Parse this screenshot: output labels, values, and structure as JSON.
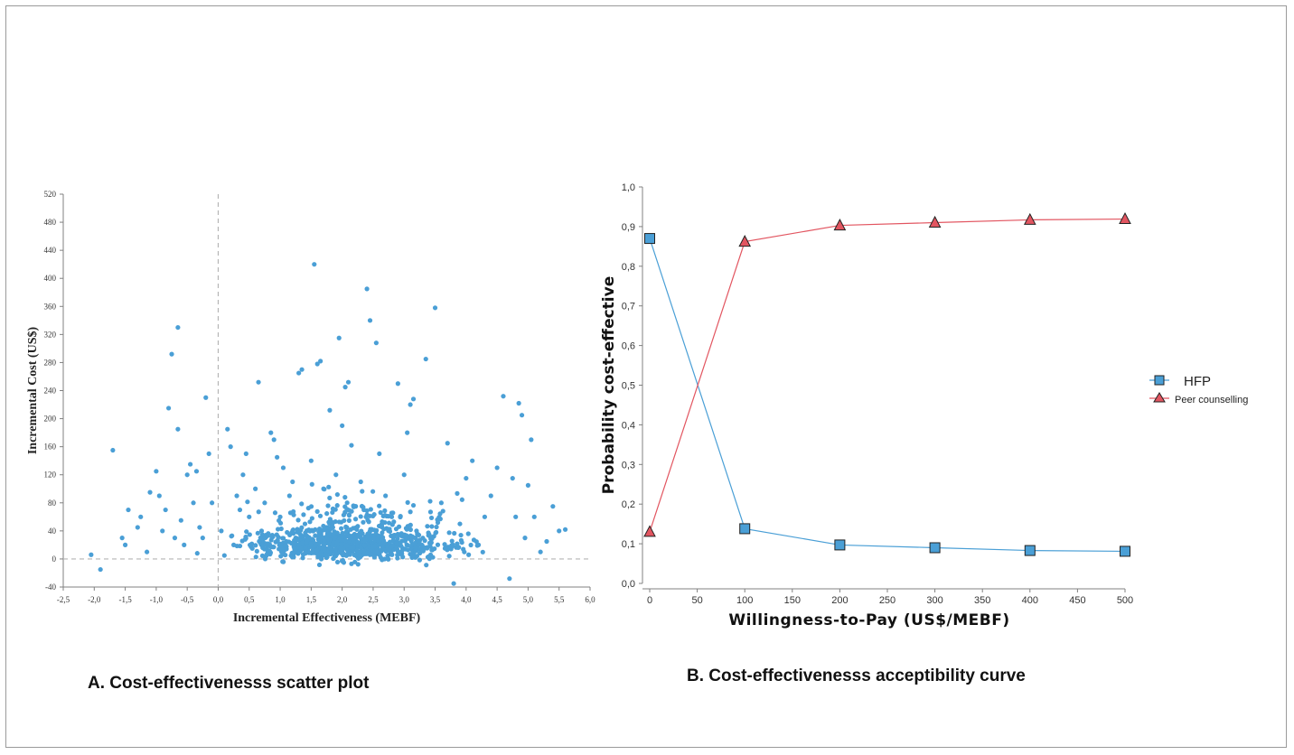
{
  "colors": {
    "scatter_point": "#4a9fd6",
    "hfp": "#4a9fd6",
    "peer": "#e25560",
    "axis": "#808080",
    "ref_line": "#b5b5b5"
  },
  "captions": {
    "a": "A. Cost-effectivenesss  scatter plot",
    "b": "B. Cost-effectivenesss  acceptibility curve"
  },
  "chart_data": [
    {
      "type": "scatter",
      "xlabel": "Incremental Effectiveness (MEBF)",
      "ylabel": "Incremental Cost (US$)",
      "xlim": [
        -2.5,
        6.0
      ],
      "ylim": [
        -40,
        520
      ],
      "x_ticks": [
        "-2,5",
        "-2,0",
        "-1,5",
        "-1,0",
        "-0,5",
        "0,0",
        "0,5",
        "1,0",
        "1,5",
        "2,0",
        "2,5",
        "3,0",
        "3,5",
        "4,0",
        "4,5",
        "5,0",
        "5,5",
        "6,0"
      ],
      "y_ticks": [
        "-40",
        "0",
        "40",
        "80",
        "120",
        "160",
        "200",
        "240",
        "280",
        "320",
        "360",
        "400",
        "440",
        "480",
        "520"
      ],
      "reference_lines": {
        "x": 0,
        "y": 0
      },
      "points": [
        [
          -2.05,
          6
        ],
        [
          -1.9,
          -15
        ],
        [
          -1.7,
          155
        ],
        [
          -1.55,
          30
        ],
        [
          -1.5,
          20
        ],
        [
          -1.45,
          70
        ],
        [
          -1.3,
          45
        ],
        [
          -1.25,
          60
        ],
        [
          -1.15,
          10
        ],
        [
          -1.1,
          95
        ],
        [
          -1.0,
          125
        ],
        [
          -0.95,
          90
        ],
        [
          -0.9,
          40
        ],
        [
          -0.85,
          70
        ],
        [
          -0.8,
          215
        ],
        [
          -0.75,
          292
        ],
        [
          -0.7,
          30
        ],
        [
          -0.65,
          185
        ],
        [
          -0.65,
          330
        ],
        [
          -0.6,
          55
        ],
        [
          -0.55,
          20
        ],
        [
          -0.5,
          120
        ],
        [
          -0.45,
          135
        ],
        [
          -0.4,
          80
        ],
        [
          -0.35,
          125
        ],
        [
          -0.3,
          45
        ],
        [
          -0.25,
          30
        ],
        [
          -0.2,
          230
        ],
        [
          -0.15,
          150
        ],
        [
          -0.1,
          80
        ],
        [
          0.05,
          40
        ],
        [
          0.1,
          5
        ],
        [
          0.15,
          185
        ],
        [
          0.2,
          160
        ],
        [
          0.25,
          20
        ],
        [
          0.3,
          90
        ],
        [
          0.35,
          70
        ],
        [
          0.4,
          120
        ],
        [
          0.45,
          150
        ],
        [
          0.5,
          60
        ],
        [
          0.55,
          15
        ],
        [
          0.6,
          100
        ],
        [
          0.65,
          252
        ],
        [
          0.7,
          40
        ],
        [
          0.75,
          80
        ],
        [
          0.8,
          10
        ],
        [
          0.85,
          180
        ],
        [
          0.9,
          170
        ],
        [
          0.95,
          145
        ],
        [
          1.0,
          60
        ],
        [
          1.05,
          130
        ],
        [
          1.1,
          25
        ],
        [
          1.15,
          90
        ],
        [
          1.2,
          110
        ],
        [
          1.25,
          30
        ],
        [
          1.3,
          265
        ],
        [
          1.35,
          270
        ],
        [
          1.4,
          50
        ],
        [
          1.45,
          15
        ],
        [
          1.5,
          140
        ],
        [
          1.55,
          420
        ],
        [
          1.6,
          278
        ],
        [
          1.65,
          282
        ],
        [
          1.7,
          100
        ],
        [
          1.8,
          212
        ],
        [
          1.85,
          45
        ],
        [
          1.9,
          120
        ],
        [
          1.95,
          315
        ],
        [
          2.0,
          190
        ],
        [
          2.05,
          245
        ],
        [
          2.1,
          252
        ],
        [
          2.15,
          162
        ],
        [
          2.2,
          30
        ],
        [
          2.3,
          110
        ],
        [
          2.35,
          70
        ],
        [
          2.4,
          385
        ],
        [
          2.45,
          340
        ],
        [
          2.5,
          20
        ],
        [
          2.55,
          308
        ],
        [
          2.6,
          150
        ],
        [
          2.7,
          90
        ],
        [
          2.8,
          60
        ],
        [
          2.9,
          250
        ],
        [
          3.0,
          120
        ],
        [
          3.05,
          180
        ],
        [
          3.1,
          220
        ],
        [
          3.15,
          228
        ],
        [
          3.2,
          40
        ],
        [
          3.35,
          285
        ],
        [
          3.5,
          358
        ],
        [
          3.6,
          80
        ],
        [
          3.7,
          165
        ],
        [
          3.8,
          -35
        ],
        [
          3.9,
          50
        ],
        [
          4.0,
          115
        ],
        [
          4.1,
          140
        ],
        [
          4.2,
          20
        ],
        [
          4.3,
          60
        ],
        [
          4.4,
          90
        ],
        [
          4.5,
          130
        ],
        [
          4.6,
          232
        ],
        [
          4.7,
          -28
        ],
        [
          4.75,
          115
        ],
        [
          4.8,
          60
        ],
        [
          4.85,
          222
        ],
        [
          4.9,
          205
        ],
        [
          4.95,
          30
        ],
        [
          5.0,
          105
        ],
        [
          5.05,
          170
        ],
        [
          5.1,
          60
        ],
        [
          5.2,
          10
        ],
        [
          5.3,
          25
        ],
        [
          5.4,
          75
        ],
        [
          5.5,
          40
        ],
        [
          5.6,
          42
        ]
      ]
    },
    {
      "type": "line",
      "xlabel": "Willingness-to-Pay (US$/MEBF)",
      "ylabel": "Probability cost-effective",
      "xlim": [
        0,
        500
      ],
      "ylim": [
        0,
        1.0
      ],
      "x_ticks": [
        "0",
        "50",
        "100",
        "150",
        "200",
        "250",
        "300",
        "350",
        "400",
        "450",
        "500"
      ],
      "y_ticks": [
        "0,0",
        "0,1",
        "0,2",
        "0,3",
        "0,4",
        "0,5",
        "0,6",
        "0,7",
        "0,8",
        "0,9",
        "1,0"
      ],
      "x": [
        0,
        100,
        200,
        300,
        400,
        500
      ],
      "series": [
        {
          "name": "HFP",
          "marker": "square",
          "values": [
            0.87,
            0.138,
            0.097,
            0.09,
            0.083,
            0.081
          ]
        },
        {
          "name": "Peer counselling",
          "marker": "triangle",
          "values": [
            0.13,
            0.862,
            0.903,
            0.91,
            0.917,
            0.919
          ]
        }
      ],
      "legend_position": "right"
    }
  ]
}
